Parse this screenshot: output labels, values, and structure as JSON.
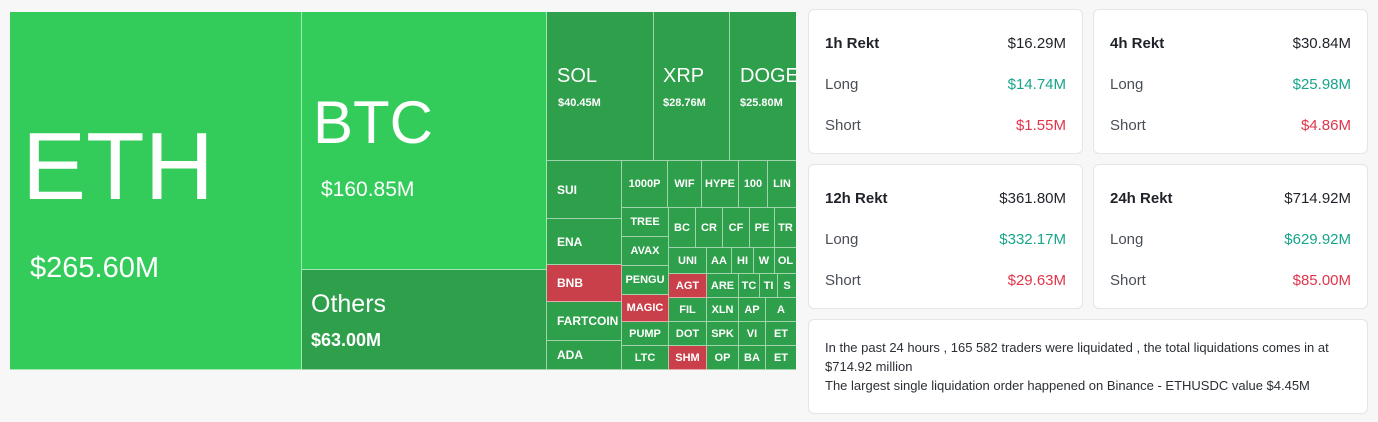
{
  "treemap": {
    "eth": {
      "name": "ETH",
      "value": "$265.60M"
    },
    "btc": {
      "name": "BTC",
      "value": "$160.85M"
    },
    "others": {
      "name": "Others",
      "value": "$63.00M"
    },
    "sol": {
      "name": "SOL",
      "value": "$40.45M"
    },
    "xrp": {
      "name": "XRP",
      "value": "$28.76M"
    },
    "doge": {
      "name": "DOGE",
      "value": "$25.80M"
    },
    "sui": "SUI",
    "ena": "ENA",
    "bnb": "BNB",
    "fartcoin": "FARTCOIN",
    "ada": "ADA",
    "1000p": "1000P",
    "wif": "WIF",
    "hype": "HYPE",
    "100": "100",
    "lin": "LIN",
    "tree": "TREE",
    "avax": "AVAX",
    "pengu": "PENGU",
    "magic": "MAGIC",
    "pump": "PUMP",
    "ltc": "LTC",
    "bc": "BC",
    "cr": "CR",
    "cf": "CF",
    "pe": "PE",
    "tr": "TR",
    "uni": "UNI",
    "aa": "AA",
    "hi": "HI",
    "w": "W",
    "ol": "OL",
    "agt": "AGT",
    "are": "ARE",
    "tc": "TC",
    "ti": "TI",
    "s": "S",
    "fil": "FIL",
    "xln": "XLN",
    "ap": "AP",
    "a": "A",
    "dot": "DOT",
    "spk": "SPK",
    "vi": "VI",
    "et": "ET",
    "shm": "SHM",
    "op": "OP",
    "ba": "BA",
    "et2": "ET"
  },
  "panels": {
    "h1": {
      "title": "1h Rekt",
      "total": "$16.29M",
      "long_label": "Long",
      "long": "$14.74M",
      "short_label": "Short",
      "short": "$1.55M"
    },
    "h4": {
      "title": "4h Rekt",
      "total": "$30.84M",
      "long_label": "Long",
      "long": "$25.98M",
      "short_label": "Short",
      "short": "$4.86M"
    },
    "h12": {
      "title": "12h Rekt",
      "total": "$361.80M",
      "long_label": "Long",
      "long": "$332.17M",
      "short_label": "Short",
      "short": "$29.63M"
    },
    "h24": {
      "title": "24h Rekt",
      "total": "$714.92M",
      "long_label": "Long",
      "long": "$629.92M",
      "short_label": "Short",
      "short": "$85.00M"
    }
  },
  "summary": {
    "line1": "In the past 24 hours , 165 582 traders were liquidated , the total liquidations comes in at $714.92 million",
    "line2": "The largest single liquidation order happened on Binance - ETHUSDC value $4.45M"
  },
  "colors": {
    "long": "#16a58a",
    "short": "#e0354b",
    "tile_green": "#33cc5a",
    "tile_dark_green": "#2e9f4a",
    "tile_red": "#c9404a"
  }
}
